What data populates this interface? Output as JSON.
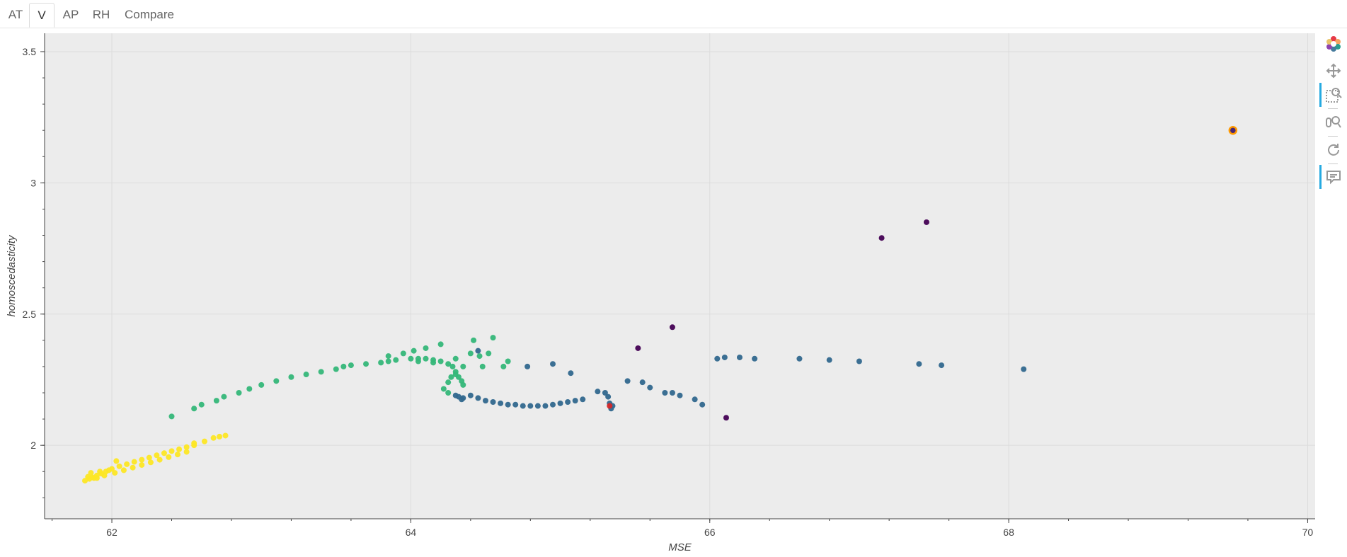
{
  "tabs": [
    {
      "label": "AT",
      "active": false
    },
    {
      "label": "V",
      "active": true
    },
    {
      "label": "AP",
      "active": false
    },
    {
      "label": "RH",
      "active": false
    },
    {
      "label": "Compare",
      "active": false
    }
  ],
  "toolbar": [
    {
      "name": "bokeh-logo-icon",
      "active": false
    },
    {
      "name": "pan-tool-icon",
      "active": false
    },
    {
      "name": "box-zoom-tool-icon",
      "active": true
    },
    {
      "name": "wheel-zoom-tool-icon",
      "active": false
    },
    {
      "name": "reset-tool-icon",
      "active": false
    },
    {
      "name": "hover-tool-icon",
      "active": true
    }
  ],
  "chart_data": {
    "type": "scatter",
    "xlabel": "MSE",
    "ylabel": "homoscedasticity",
    "xlim": [
      61.55,
      70.05
    ],
    "ylim": [
      1.72,
      3.57
    ],
    "x_ticks": [
      62,
      64,
      66,
      68,
      70
    ],
    "y_ticks": [
      2,
      2.5,
      3,
      3.5
    ],
    "x_tick_labels": [
      "62",
      "64",
      "66",
      "68",
      "70"
    ],
    "y_tick_labels": [
      "2",
      "2.5",
      "3",
      "3.5"
    ],
    "grid": true,
    "background": "#ececec",
    "series": [
      {
        "color": "#fde725",
        "x": [
          61.82,
          61.85,
          61.87,
          61.9,
          61.93,
          61.96,
          62.0,
          62.05,
          62.1,
          62.15,
          62.2,
          62.25,
          62.3,
          62.35,
          62.4,
          62.45,
          62.5,
          62.55,
          61.88,
          61.84,
          61.9,
          61.95,
          62.02,
          62.08,
          62.14,
          62.2,
          62.26,
          62.32,
          62.38,
          62.44,
          62.5,
          62.03,
          62.55,
          62.62,
          62.68,
          62.72,
          62.76,
          61.86,
          61.92,
          61.98
        ],
        "y": [
          1.865,
          1.872,
          1.878,
          1.885,
          1.892,
          1.9,
          1.91,
          1.92,
          1.928,
          1.937,
          1.945,
          1.953,
          1.962,
          1.97,
          1.978,
          1.985,
          1.993,
          2.0,
          1.875,
          1.88,
          1.875,
          1.885,
          1.895,
          1.905,
          1.915,
          1.925,
          1.935,
          1.945,
          1.955,
          1.965,
          1.975,
          1.94,
          2.008,
          2.015,
          2.028,
          2.033,
          2.037,
          1.895,
          1.9,
          1.905
        ]
      },
      {
        "color": "#35b779",
        "x": [
          62.4,
          62.55,
          62.6,
          62.7,
          62.75,
          62.85,
          62.92,
          63.0,
          63.1,
          63.2,
          63.3,
          63.4,
          63.5,
          63.55,
          63.6,
          63.7,
          63.8,
          63.85,
          63.9,
          64.0,
          64.05,
          64.1,
          64.15,
          64.2,
          64.25,
          64.28,
          64.3,
          64.32,
          64.34,
          64.35,
          64.25,
          64.22,
          64.27,
          64.3,
          64.35,
          64.4,
          64.42,
          64.46,
          64.48,
          64.52,
          64.55,
          64.62,
          64.65,
          64.2,
          64.1,
          64.02,
          63.95,
          63.85,
          64.05,
          64.15,
          64.3,
          64.25
        ],
        "y": [
          2.11,
          2.14,
          2.155,
          2.17,
          2.185,
          2.2,
          2.215,
          2.23,
          2.245,
          2.26,
          2.27,
          2.28,
          2.29,
          2.3,
          2.305,
          2.31,
          2.315,
          2.32,
          2.325,
          2.33,
          2.33,
          2.33,
          2.325,
          2.32,
          2.31,
          2.3,
          2.28,
          2.26,
          2.245,
          2.23,
          2.2,
          2.215,
          2.26,
          2.27,
          2.3,
          2.35,
          2.4,
          2.34,
          2.3,
          2.35,
          2.41,
          2.3,
          2.32,
          2.385,
          2.37,
          2.36,
          2.35,
          2.34,
          2.32,
          2.315,
          2.33,
          2.24
        ]
      },
      {
        "color": "#31688e",
        "x": [
          64.3,
          64.32,
          64.35,
          64.4,
          64.45,
          64.5,
          64.55,
          64.6,
          64.65,
          64.7,
          64.75,
          64.8,
          64.85,
          64.9,
          64.95,
          65.0,
          65.05,
          65.1,
          65.15,
          65.25,
          65.3,
          65.32,
          65.33,
          65.34,
          65.35,
          65.45,
          65.55,
          65.6,
          65.7,
          65.75,
          65.8,
          65.9,
          65.95,
          66.05,
          66.1,
          66.2,
          66.3,
          66.6,
          66.8,
          67.0,
          67.4,
          67.55,
          68.1,
          64.45,
          64.95,
          65.07,
          64.78,
          64.34
        ],
        "y": [
          2.19,
          2.185,
          2.18,
          2.19,
          2.18,
          2.17,
          2.165,
          2.16,
          2.155,
          2.155,
          2.15,
          2.15,
          2.15,
          2.15,
          2.155,
          2.16,
          2.165,
          2.17,
          2.175,
          2.205,
          2.2,
          2.185,
          2.16,
          2.14,
          2.15,
          2.245,
          2.24,
          2.22,
          2.2,
          2.2,
          2.19,
          2.175,
          2.155,
          2.33,
          2.335,
          2.335,
          2.33,
          2.33,
          2.325,
          2.32,
          2.31,
          2.305,
          2.29,
          2.36,
          2.31,
          2.275,
          2.3,
          2.175
        ]
      },
      {
        "color": "#440154",
        "x": [
          65.52,
          65.75,
          66.11,
          67.15,
          67.45
        ],
        "y": [
          2.37,
          2.45,
          2.105,
          2.79,
          2.85
        ]
      },
      {
        "color": "#d62728",
        "x": [
          65.33
        ],
        "y": [
          2.15
        ]
      }
    ],
    "highlight": {
      "x": 69.5,
      "y": 3.2,
      "fill": "#482878",
      "stroke": "#ff9900"
    }
  }
}
